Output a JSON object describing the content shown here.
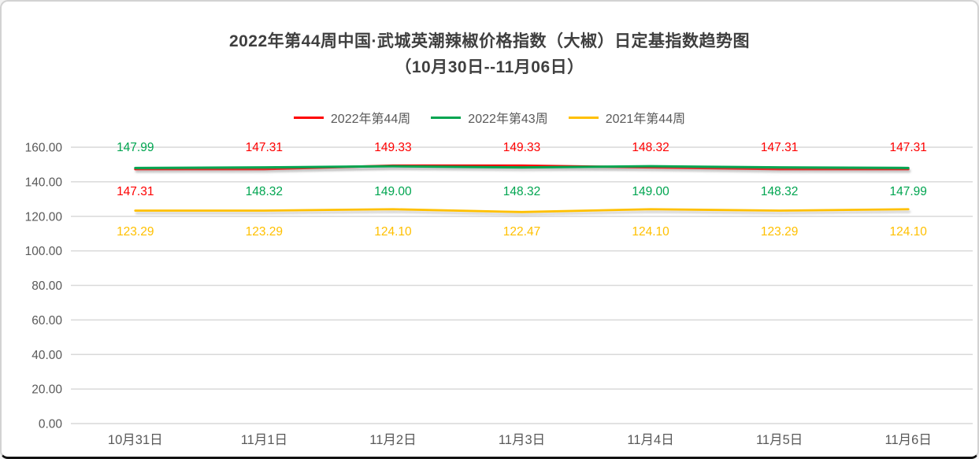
{
  "window": {
    "background": "#ffffff",
    "border_color": "#d2d2d2",
    "border_bottom_color": "#121212"
  },
  "title": {
    "line1": "2022年第44周中国·武城英潮辣椒价格指数（大椒）日定基指数趋势图",
    "line2": "（10月30日--11月06日）",
    "color": "#3f3f3f"
  },
  "chart_data": {
    "type": "line",
    "title": "2022年第44周中国·武城英潮辣椒价格指数（大椒）日定基指数趋势图（10月30日--11月06日）",
    "categories": [
      "10月31日",
      "11月1日",
      "11月2日",
      "11月3日",
      "11月4日",
      "11月5日",
      "11月6日"
    ],
    "series": [
      {
        "name": "2022年第44周",
        "color": "#fe0000",
        "values": [
          147.31,
          147.31,
          149.33,
          149.33,
          148.32,
          147.31,
          147.31
        ]
      },
      {
        "name": "2022年第43周",
        "color": "#00a550",
        "values": [
          147.99,
          148.32,
          149.0,
          148.32,
          149.0,
          148.32,
          147.99
        ]
      },
      {
        "name": "2021年第44周",
        "color": "#ffc000",
        "values": [
          123.29,
          123.29,
          124.1,
          122.47,
          124.1,
          123.29,
          124.1
        ]
      }
    ],
    "xlabel": "",
    "ylabel": "",
    "ylim": [
      0,
      160
    ],
    "ytick_step": 20,
    "ytick_labels": [
      "0.00",
      "20.00",
      "40.00",
      "60.00",
      "80.00",
      "100.00",
      "120.00",
      "140.00",
      "160.00"
    ],
    "grid": true,
    "grid_color": "#d9d9d9",
    "axis_text_color": "#595959",
    "legend_position": "top",
    "data_labels_visible": true,
    "label_rows": {
      "top_series_by_point": [
        1,
        0,
        0,
        0,
        0,
        0,
        0
      ],
      "bottom_series_by_point": [
        0,
        1,
        1,
        1,
        1,
        1,
        1
      ],
      "third_row_series_index": 2
    }
  }
}
